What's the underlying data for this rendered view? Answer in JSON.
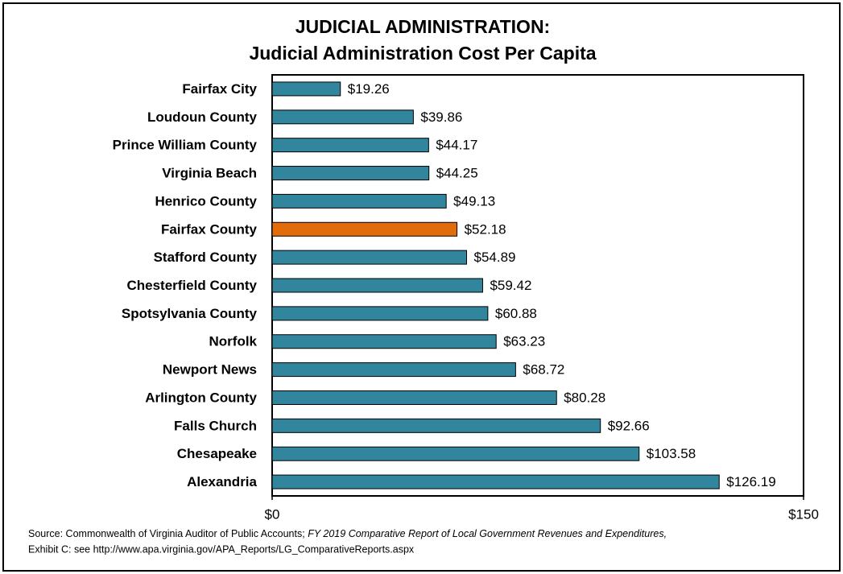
{
  "chart_data": {
    "type": "bar",
    "orientation": "horizontal",
    "title": [
      "JUDICIAL ADMINISTRATION:",
      "Judicial Administration Cost Per Capita"
    ],
    "categories": [
      "Fairfax City",
      "Loudoun County",
      "Prince William County",
      "Virginia Beach",
      "Henrico County",
      "Fairfax County",
      "Stafford County",
      "Chesterfield County",
      "Spotsylvania County",
      "Norfolk",
      "Newport News",
      "Arlington County",
      "Falls Church",
      "Chesapeake",
      "Alexandria"
    ],
    "values": [
      19.26,
      39.86,
      44.17,
      44.25,
      49.13,
      52.18,
      54.89,
      59.42,
      60.88,
      63.23,
      68.72,
      80.28,
      92.66,
      103.58,
      126.19
    ],
    "value_labels": [
      "$19.26",
      "$39.86",
      "$44.17",
      "$44.25",
      "$49.13",
      "$52.18",
      "$54.89",
      "$59.42",
      "$60.88",
      "$63.23",
      "$68.72",
      "$80.28",
      "$92.66",
      "$103.58",
      "$126.19"
    ],
    "colors": [
      "#31859c",
      "#31859c",
      "#31859c",
      "#31859c",
      "#31859c",
      "#e36c0a",
      "#31859c",
      "#31859c",
      "#31859c",
      "#31859c",
      "#31859c",
      "#31859c",
      "#31859c",
      "#31859c",
      "#31859c"
    ],
    "xlim": [
      0,
      150
    ],
    "xticks": [
      {
        "value": 0,
        "label": "$0"
      },
      {
        "value": 150,
        "label": "$150"
      }
    ],
    "source": [
      "Source: Commonwealth of Virginia Auditor of Public Accounts; ",
      "FY 2019 Comparative Report of Local Government Revenues and Expenditures,",
      "Exhibit C: see http://www.apa.virginia.gov/APA_Reports/LG_ComparativeReports.aspx"
    ]
  }
}
